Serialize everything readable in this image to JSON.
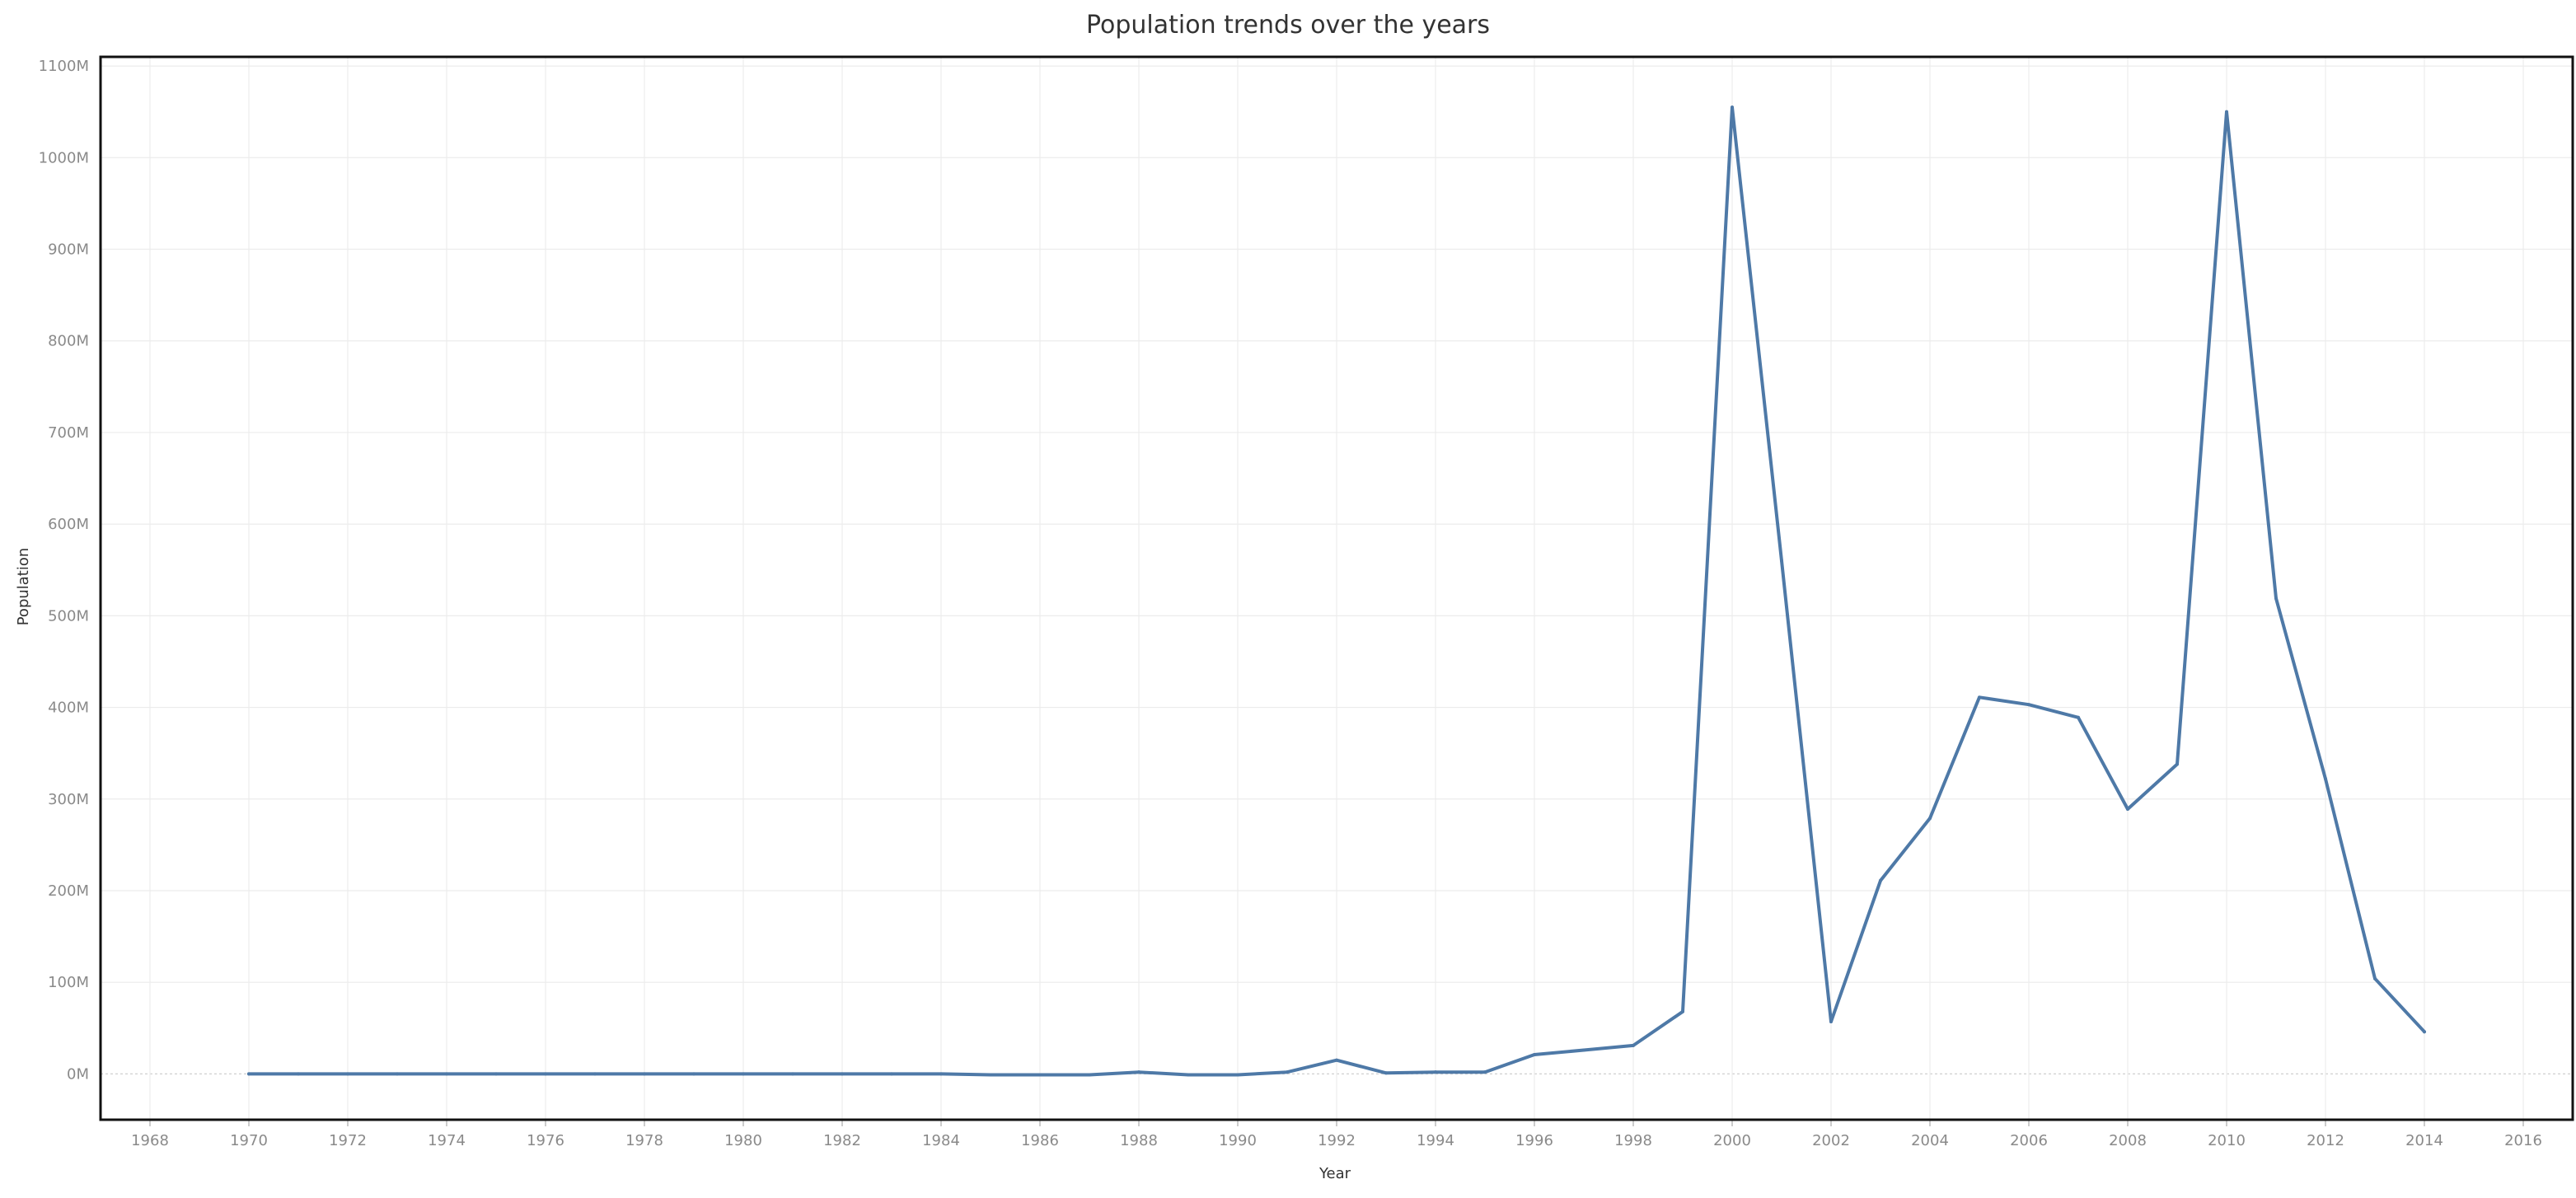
{
  "chart_data": {
    "type": "line",
    "title": "Population trends over the years",
    "xlabel": "Year",
    "ylabel": "Population",
    "xlim": [
      1967,
      2017
    ],
    "ylim": [
      -50,
      1110
    ],
    "x_ticks": [
      1968,
      1970,
      1972,
      1974,
      1976,
      1978,
      1980,
      1982,
      1984,
      1986,
      1988,
      1990,
      1992,
      1994,
      1996,
      1998,
      2000,
      2002,
      2004,
      2006,
      2008,
      2010,
      2012,
      2014,
      2016
    ],
    "y_ticks": [
      0,
      100,
      200,
      300,
      400,
      500,
      600,
      700,
      800,
      900,
      1000,
      1100
    ],
    "y_tick_labels": [
      "0M",
      "100M",
      "200M",
      "300M",
      "400M",
      "500M",
      "600M",
      "700M",
      "800M",
      "900M",
      "1000M",
      "1100M"
    ],
    "grid": true,
    "line_color": "#4e79a7",
    "series": [
      {
        "x": [
          1970,
          1971,
          1972,
          1973,
          1974,
          1975,
          1976,
          1977,
          1978,
          1979,
          1980,
          1981,
          1982,
          1983,
          1984,
          1985,
          1986,
          1987,
          1988,
          1989,
          1990,
          1991,
          1992,
          1993,
          1994,
          1995,
          1996,
          1997,
          1998,
          1999,
          2000,
          2001,
          2002,
          2003,
          2004,
          2005,
          2006,
          2007,
          2008,
          2009,
          2010,
          2011,
          2012,
          2013,
          2014
        ],
        "values": [
          0,
          0,
          0,
          0,
          0,
          0,
          0,
          0,
          0,
          0,
          0,
          0,
          0,
          0,
          0,
          -1,
          -1,
          -1,
          2,
          -1,
          -1,
          2,
          15,
          1,
          2,
          2,
          21,
          26,
          31,
          68,
          1055,
          560,
          57,
          211,
          279,
          411,
          403,
          389,
          289,
          338,
          1050,
          519,
          322,
          104,
          46
        ]
      }
    ]
  }
}
